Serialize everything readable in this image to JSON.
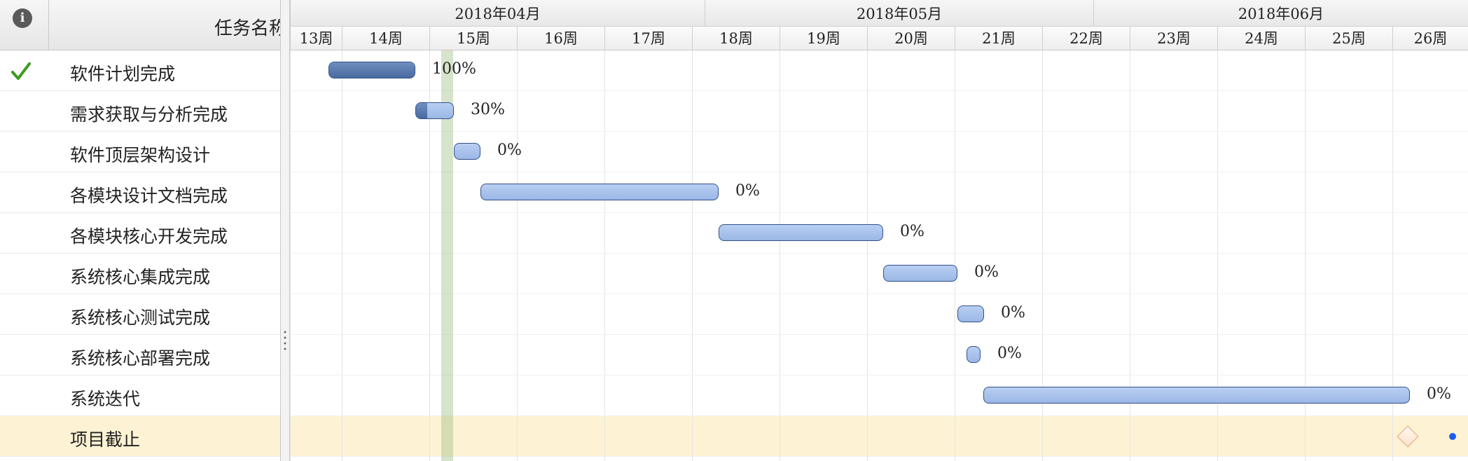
{
  "header": {
    "info_icon": "i",
    "task_name": "任务名称"
  },
  "months": [
    {
      "label": "2018年04月"
    },
    {
      "label": "2018年05月"
    },
    {
      "label": "2018年06月"
    }
  ],
  "weeks": [
    "13周",
    "14周",
    "15周",
    "16周",
    "17周",
    "18周",
    "19周",
    "20周",
    "21周",
    "22周",
    "23周",
    "24周",
    "25周",
    "26周"
  ],
  "tasks": [
    {
      "name": "软件计划完成",
      "done": true,
      "progress_pct": 100,
      "progress_label": "100%"
    },
    {
      "name": "需求获取与分析完成",
      "done": false,
      "progress_pct": 30,
      "progress_label": "30%"
    },
    {
      "name": "软件顶层架构设计",
      "done": false,
      "progress_pct": 0,
      "progress_label": "0%"
    },
    {
      "name": "各模块设计文档完成",
      "done": false,
      "progress_pct": 0,
      "progress_label": "0%"
    },
    {
      "name": "各模块核心开发完成",
      "done": false,
      "progress_pct": 0,
      "progress_label": "0%"
    },
    {
      "name": "系统核心集成完成",
      "done": false,
      "progress_pct": 0,
      "progress_label": "0%"
    },
    {
      "name": "系统核心测试完成",
      "done": false,
      "progress_pct": 0,
      "progress_label": "0%"
    },
    {
      "name": "系统核心部署完成",
      "done": false,
      "progress_pct": 0,
      "progress_label": "0%"
    },
    {
      "name": "系统迭代",
      "done": false,
      "progress_pct": 0,
      "progress_label": "0%"
    },
    {
      "name": "项目截止",
      "done": false,
      "milestone": true
    }
  ],
  "colors": {
    "bar_fill": "#a9c3ee",
    "bar_done": "#5574a8",
    "bar_border": "#31508a",
    "check": "#3e9a1e",
    "today_band": "#b9d2a3",
    "milestone_row": "#fdf3d4",
    "milestone_diamond": "#e8a07a",
    "end_dot": "#1a5cf0"
  },
  "icons": {
    "info": "info-icon",
    "done": "checkmark-icon",
    "milestone": "diamond-milestone-icon",
    "splitter": "splitter-grip-icon"
  }
}
